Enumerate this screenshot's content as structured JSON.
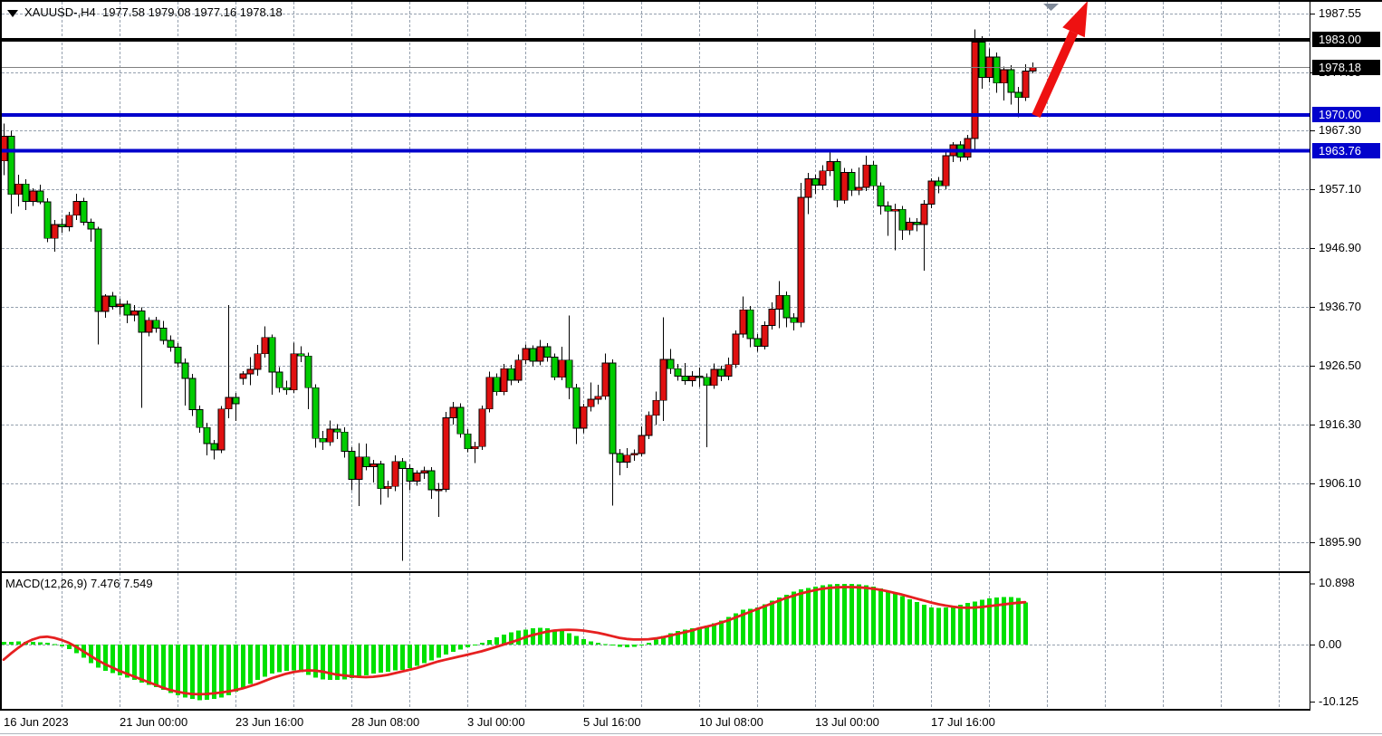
{
  "window": {
    "title_symbol": "XAUUSD-,H4",
    "title_ohlc": "1977.58 1979.08 1977.16 1978.18"
  },
  "colors": {
    "bull": "#e01010",
    "bear": "#00cc00",
    "wick": "#000000",
    "hist": "#00e000",
    "signal": "#e62020",
    "grid": "#95a0ae",
    "level_blue": "#0202cc",
    "level_black": "#000000",
    "current_line": "#808080",
    "arrow": "#ee1111",
    "shift_marker": "#808a99",
    "badge_black_bg": "#000000",
    "badge_blue_bg": "#0202cc"
  },
  "chart_data": {
    "type": "candlestick",
    "symbol": "XAUUSD-",
    "timeframe": "H4",
    "current_bar": {
      "open": 1977.58,
      "high": 1979.08,
      "low": 1977.16,
      "close": 1978.18
    },
    "price_axis": {
      "ticks": [
        {
          "label": "1987.55",
          "value": 1987.55
        },
        {
          "label": "1977.35",
          "value": 1977.35,
          "partially_hidden": true
        },
        {
          "label": "1967.30",
          "value": 1967.3
        },
        {
          "label": "1957.10",
          "value": 1957.1
        },
        {
          "label": "1946.90",
          "value": 1946.9
        },
        {
          "label": "1936.70",
          "value": 1936.7
        },
        {
          "label": "1926.50",
          "value": 1926.5
        },
        {
          "label": "1916.30",
          "value": 1916.3
        },
        {
          "label": "1906.10",
          "value": 1906.1
        },
        {
          "label": "1895.90",
          "value": 1895.9
        }
      ],
      "badges": [
        {
          "label": "1983.00",
          "value": 1983.0,
          "style": "black"
        },
        {
          "label": "1978.18",
          "value": 1978.18,
          "style": "black"
        },
        {
          "label": "1970.00",
          "value": 1970.0,
          "style": "blue"
        },
        {
          "label": "1963.76",
          "value": 1963.76,
          "style": "blue"
        }
      ]
    },
    "levels": {
      "black_resistance": 1983.0,
      "blue_support": [
        1970.0,
        1963.76
      ],
      "current_price": 1978.18
    },
    "x_labels": [
      "16 Jun 2023",
      "21 Jun 00:00",
      "23 Jun 16:00",
      "28 Jun 08:00",
      "3 Jul 00:00",
      "5 Jul 16:00",
      "10 Jul 08:00",
      "13 Jul 00:00",
      "17 Jul 16:00"
    ],
    "candles": [
      [
        1962.0,
        1968.5,
        1959.5,
        1966.3
      ],
      [
        1966.3,
        1967.2,
        1952.9,
        1956.2
      ],
      [
        1956.2,
        1959.6,
        1954.1,
        1958.0
      ],
      [
        1958.0,
        1958.8,
        1953.5,
        1955.0
      ],
      [
        1955.0,
        1957.3,
        1954.2,
        1956.8
      ],
      [
        1956.8,
        1957.9,
        1954.5,
        1954.9
      ],
      [
        1954.9,
        1955.5,
        1947.9,
        1948.6
      ],
      [
        1948.6,
        1951.8,
        1946.3,
        1951.0
      ],
      [
        1951.0,
        1952.0,
        1949.6,
        1950.6
      ],
      [
        1950.6,
        1953.2,
        1949.8,
        1952.6
      ],
      [
        1952.6,
        1956.3,
        1951.8,
        1955.0
      ],
      [
        1955.0,
        1955.6,
        1950.8,
        1951.4
      ],
      [
        1951.4,
        1952.0,
        1948.0,
        1950.2
      ],
      [
        1950.2,
        1950.6,
        1930.2,
        1935.9
      ],
      [
        1935.9,
        1938.9,
        1934.8,
        1938.6
      ],
      [
        1938.6,
        1939.3,
        1936.2,
        1936.8
      ],
      [
        1936.8,
        1938.1,
        1935.4,
        1937.2
      ],
      [
        1937.2,
        1937.8,
        1933.9,
        1935.3
      ],
      [
        1935.3,
        1937.0,
        1934.2,
        1936.0
      ],
      [
        1936.0,
        1936.6,
        1919.2,
        1932.3
      ],
      [
        1932.3,
        1934.9,
        1931.6,
        1934.4
      ],
      [
        1934.4,
        1935.0,
        1932.2,
        1933.0
      ],
      [
        1933.0,
        1934.3,
        1930.2,
        1930.9
      ],
      [
        1930.9,
        1931.8,
        1928.9,
        1929.7
      ],
      [
        1929.7,
        1930.4,
        1926.2,
        1927.0
      ],
      [
        1927.0,
        1927.8,
        1919.6,
        1924.3
      ],
      [
        1924.3,
        1925.1,
        1917.8,
        1918.9
      ],
      [
        1918.9,
        1919.6,
        1914.9,
        1915.8
      ],
      [
        1915.8,
        1916.6,
        1911.0,
        1913.0
      ],
      [
        1913.0,
        1913.6,
        1910.3,
        1911.9
      ],
      [
        1911.9,
        1919.5,
        1911.4,
        1919.0
      ],
      [
        1919.0,
        1937.0,
        1917.4,
        1921.0
      ],
      [
        1921.0,
        1921.8,
        1916.9,
        1919.9
      ],
      [
        1924.3,
        1925.6,
        1923.2,
        1925.1
      ],
      [
        1925.1,
        1928.0,
        1923.1,
        1925.9
      ],
      [
        1925.9,
        1930.1,
        1924.8,
        1928.6
      ],
      [
        1928.6,
        1933.3,
        1927.9,
        1931.4
      ],
      [
        1931.4,
        1931.9,
        1921.5,
        1925.4
      ],
      [
        1925.4,
        1926.3,
        1921.9,
        1922.7
      ],
      [
        1922.7,
        1923.9,
        1921.5,
        1922.3
      ],
      [
        1922.3,
        1930.5,
        1921.8,
        1928.6
      ],
      [
        1928.6,
        1929.9,
        1927.1,
        1928.2
      ],
      [
        1928.2,
        1928.8,
        1919.0,
        1922.7
      ],
      [
        1922.7,
        1923.3,
        1912.3,
        1913.9
      ],
      [
        1913.9,
        1915.2,
        1911.9,
        1913.3
      ],
      [
        1913.3,
        1917.0,
        1912.6,
        1915.5
      ],
      [
        1915.5,
        1916.4,
        1913.8,
        1915.0
      ],
      [
        1915.0,
        1915.8,
        1910.6,
        1911.7
      ],
      [
        1911.7,
        1912.4,
        1904.9,
        1906.8
      ],
      [
        1906.8,
        1913.1,
        1902.2,
        1910.7
      ],
      [
        1910.7,
        1913.0,
        1908.4,
        1909.0
      ],
      [
        1909.0,
        1910.2,
        1906.3,
        1909.5
      ],
      [
        1909.5,
        1910.0,
        1902.4,
        1905.2
      ],
      [
        1905.2,
        1906.6,
        1903.7,
        1905.6
      ],
      [
        1905.6,
        1911.0,
        1904.8,
        1909.9
      ],
      [
        1909.9,
        1910.5,
        1892.7,
        1908.7
      ],
      [
        1908.7,
        1909.4,
        1904.9,
        1906.5
      ],
      [
        1906.5,
        1908.4,
        1905.7,
        1907.9
      ],
      [
        1907.9,
        1909.0,
        1906.9,
        1908.3
      ],
      [
        1908.3,
        1908.9,
        1903.4,
        1905.0
      ],
      [
        1905.0,
        1906.2,
        1900.3,
        1905.1
      ],
      [
        1905.1,
        1918.5,
        1904.6,
        1917.5
      ],
      [
        1917.5,
        1920.2,
        1916.3,
        1919.3
      ],
      [
        1919.3,
        1920.0,
        1914.0,
        1914.7
      ],
      [
        1914.7,
        1915.5,
        1911.5,
        1912.1
      ],
      [
        1912.1,
        1913.3,
        1909.6,
        1912.5
      ],
      [
        1912.5,
        1919.6,
        1911.9,
        1919.0
      ],
      [
        1919.0,
        1925.5,
        1918.4,
        1924.5
      ],
      [
        1924.5,
        1925.2,
        1921.3,
        1922.0
      ],
      [
        1922.0,
        1926.8,
        1921.4,
        1926.0
      ],
      [
        1926.0,
        1926.7,
        1923.1,
        1924.0
      ],
      [
        1924.0,
        1928.5,
        1923.5,
        1927.5
      ],
      [
        1927.5,
        1930.2,
        1926.8,
        1929.5
      ],
      [
        1929.5,
        1930.0,
        1926.4,
        1927.3
      ],
      [
        1927.3,
        1931.0,
        1926.6,
        1929.8
      ],
      [
        1929.8,
        1930.4,
        1927.2,
        1928.0
      ],
      [
        1928.0,
        1928.6,
        1924.0,
        1924.5
      ],
      [
        1924.5,
        1929.8,
        1924.0,
        1927.5
      ],
      [
        1927.5,
        1935.2,
        1920.7,
        1922.7
      ],
      [
        1922.7,
        1923.4,
        1912.9,
        1915.7
      ],
      [
        1915.7,
        1919.9,
        1914.8,
        1919.4
      ],
      [
        1919.4,
        1923.6,
        1918.6,
        1920.7
      ],
      [
        1920.7,
        1923.2,
        1919.8,
        1921.2
      ],
      [
        1921.2,
        1928.6,
        1920.6,
        1927.0
      ],
      [
        1927.0,
        1927.6,
        1902.3,
        1911.3
      ],
      [
        1911.3,
        1912.1,
        1907.5,
        1909.8
      ],
      [
        1909.8,
        1912.2,
        1908.8,
        1911.0
      ],
      [
        1911.0,
        1912.0,
        1910.0,
        1911.3
      ],
      [
        1911.3,
        1916.0,
        1910.8,
        1914.4
      ],
      [
        1914.4,
        1918.6,
        1913.8,
        1917.9
      ],
      [
        1917.9,
        1922.0,
        1916.3,
        1920.5
      ],
      [
        1920.5,
        1934.9,
        1916.9,
        1927.6
      ],
      [
        1927.6,
        1929.4,
        1925.1,
        1926.0
      ],
      [
        1926.0,
        1926.8,
        1923.9,
        1924.7
      ],
      [
        1924.7,
        1927.0,
        1923.2,
        1923.9
      ],
      [
        1923.9,
        1925.6,
        1922.9,
        1924.7
      ],
      [
        1924.7,
        1926.2,
        1922.8,
        1924.5
      ],
      [
        1924.5,
        1925.2,
        1912.4,
        1923.1
      ],
      [
        1923.1,
        1926.9,
        1922.5,
        1925.9
      ],
      [
        1925.9,
        1926.5,
        1923.8,
        1924.7
      ],
      [
        1924.7,
        1927.9,
        1924.0,
        1926.7
      ],
      [
        1926.7,
        1932.6,
        1926.1,
        1932.0
      ],
      [
        1932.0,
        1938.5,
        1931.4,
        1936.2
      ],
      [
        1936.2,
        1936.9,
        1929.7,
        1931.2
      ],
      [
        1931.2,
        1932.0,
        1928.9,
        1929.9
      ],
      [
        1929.9,
        1934.2,
        1929.3,
        1933.5
      ],
      [
        1933.5,
        1937.5,
        1932.8,
        1936.3
      ],
      [
        1936.3,
        1941.2,
        1933.0,
        1938.7
      ],
      [
        1938.7,
        1939.4,
        1933.2,
        1934.8
      ],
      [
        1934.8,
        1935.6,
        1932.6,
        1934.0
      ],
      [
        1934.0,
        1958.2,
        1933.2,
        1955.7
      ],
      [
        1955.7,
        1959.9,
        1952.8,
        1958.9
      ],
      [
        1958.9,
        1959.6,
        1956.3,
        1957.8
      ],
      [
        1957.8,
        1961.3,
        1957.0,
        1960.3
      ],
      [
        1960.3,
        1963.5,
        1959.4,
        1961.9
      ],
      [
        1961.9,
        1962.4,
        1954.0,
        1955.2
      ],
      [
        1955.2,
        1960.8,
        1954.6,
        1960.0
      ],
      [
        1960.0,
        1960.6,
        1955.9,
        1956.9
      ],
      [
        1956.9,
        1960.9,
        1956.1,
        1957.4
      ],
      [
        1957.4,
        1962.9,
        1956.8,
        1961.3
      ],
      [
        1961.3,
        1962.0,
        1956.9,
        1957.7
      ],
      [
        1957.7,
        1958.3,
        1952.7,
        1954.2
      ],
      [
        1954.2,
        1955.0,
        1949.0,
        1953.3
      ],
      [
        1953.3,
        1954.6,
        1946.5,
        1953.6
      ],
      [
        1953.6,
        1954.2,
        1948.3,
        1950.0
      ],
      [
        1950.0,
        1952.2,
        1949.2,
        1951.4
      ],
      [
        1951.4,
        1952.1,
        1949.8,
        1951.0
      ],
      [
        1951.0,
        1955.2,
        1943.0,
        1954.5
      ],
      [
        1954.5,
        1959.0,
        1953.8,
        1958.5
      ],
      [
        1958.5,
        1959.2,
        1956.4,
        1957.7
      ],
      [
        1957.7,
        1963.6,
        1957.1,
        1962.9
      ],
      [
        1962.9,
        1965.3,
        1961.8,
        1964.8
      ],
      [
        1964.8,
        1965.4,
        1961.9,
        1962.7
      ],
      [
        1962.7,
        1966.5,
        1962.1,
        1965.9
      ],
      [
        1965.9,
        1984.8,
        1963.6,
        1982.6
      ],
      [
        1982.6,
        1983.6,
        1974.5,
        1976.5
      ],
      [
        1976.5,
        1981.5,
        1975.6,
        1980.0
      ],
      [
        1980.0,
        1980.8,
        1973.8,
        1975.5
      ],
      [
        1975.5,
        1978.4,
        1972.5,
        1977.8
      ],
      [
        1977.8,
        1978.6,
        1971.8,
        1973.9
      ],
      [
        1973.9,
        1974.8,
        1969.6,
        1973.0
      ],
      [
        1973.0,
        1978.8,
        1972.4,
        1977.6
      ],
      [
        1977.58,
        1979.08,
        1977.16,
        1978.18
      ]
    ],
    "macd": {
      "name": "MACD(12,26,9)",
      "values_label": "7.476 7.549",
      "main_value": 7.476,
      "signal_value": 7.549,
      "axis_ticks": [
        {
          "label": "10.898",
          "value": 10.898
        },
        {
          "label": "0.00",
          "value": 0
        },
        {
          "label": "-10.125",
          "value": -10.125
        }
      ],
      "histogram": [
        0.45,
        0.5,
        0.55,
        0.5,
        0.45,
        0.4,
        0.3,
        0.1,
        -0.3,
        -0.8,
        -1.5,
        -2.3,
        -3.3,
        -4.1,
        -4.7,
        -5.1,
        -5.5,
        -5.9,
        -6.3,
        -6.8,
        -7.2,
        -7.6,
        -8.1,
        -8.6,
        -9.0,
        -9.4,
        -9.7,
        -9.9,
        -9.85,
        -9.7,
        -9.4,
        -9.0,
        -8.4,
        -7.7,
        -7.0,
        -6.3,
        -5.7,
        -5.2,
        -4.9,
        -4.7,
        -4.6,
        -4.9,
        -5.4,
        -5.9,
        -6.2,
        -6.3,
        -6.3,
        -6.2,
        -6.0,
        -5.8,
        -5.5,
        -5.2,
        -5.0,
        -4.8,
        -4.6,
        -4.5,
        -4.2,
        -3.8,
        -3.3,
        -2.8,
        -2.3,
        -1.8,
        -1.3,
        -0.9,
        -0.5,
        -0.2,
        0.3,
        0.8,
        1.3,
        1.8,
        2.2,
        2.5,
        2.7,
        2.9,
        3.0,
        2.9,
        2.7,
        2.4,
        2.0,
        1.5,
        1.0,
        0.6,
        0.3,
        0.1,
        -0.2,
        -0.4,
        -0.5,
        -0.4,
        -0.1,
        0.3,
        0.9,
        1.5,
        2.0,
        2.4,
        2.7,
        2.9,
        3.1,
        3.4,
        3.8,
        4.3,
        4.9,
        5.6,
        6.2,
        6.4,
        6.6,
        7.2,
        7.8,
        8.4,
        8.9,
        9.4,
        9.8,
        10.1,
        10.35,
        10.55,
        10.7,
        10.78,
        10.82,
        10.8,
        10.7,
        10.55,
        10.3,
        10.0,
        9.6,
        9.1,
        8.6,
        8.1,
        7.6,
        7.1,
        6.6,
        6.5,
        6.6,
        6.8,
        7.1,
        7.4,
        7.7,
        8.0,
        8.2,
        8.35,
        8.45,
        8.5,
        8.3,
        7.476
      ],
      "signal": [
        -2.7,
        -1.6,
        -0.6,
        0.3,
        0.9,
        1.3,
        1.4,
        1.2,
        0.8,
        0.3,
        -0.4,
        -1.2,
        -2.0,
        -2.8,
        -3.5,
        -4.1,
        -4.7,
        -5.2,
        -5.7,
        -6.2,
        -6.7,
        -7.2,
        -7.7,
        -8.1,
        -8.4,
        -8.65,
        -8.8,
        -8.85,
        -8.8,
        -8.7,
        -8.55,
        -8.35,
        -8.1,
        -7.8,
        -7.4,
        -7.0,
        -6.5,
        -6.0,
        -5.6,
        -5.2,
        -4.9,
        -4.7,
        -4.6,
        -4.65,
        -4.8,
        -5.1,
        -5.35,
        -5.5,
        -5.65,
        -5.75,
        -5.8,
        -5.75,
        -5.6,
        -5.4,
        -5.1,
        -4.8,
        -4.5,
        -4.2,
        -3.8,
        -3.4,
        -3.0,
        -2.7,
        -2.4,
        -2.1,
        -1.8,
        -1.5,
        -1.2,
        -0.8,
        -0.4,
        0.0,
        0.4,
        0.8,
        1.3,
        1.7,
        2.0,
        2.3,
        2.5,
        2.6,
        2.65,
        2.6,
        2.5,
        2.3,
        2.1,
        1.8,
        1.5,
        1.2,
        1.0,
        0.9,
        0.9,
        0.95,
        1.1,
        1.3,
        1.6,
        1.9,
        2.2,
        2.5,
        2.9,
        3.2,
        3.5,
        3.9,
        4.3,
        4.8,
        5.3,
        5.8,
        6.3,
        6.8,
        7.3,
        7.8,
        8.3,
        8.7,
        9.1,
        9.4,
        9.7,
        9.95,
        10.1,
        10.2,
        10.25,
        10.25,
        10.2,
        10.1,
        9.95,
        9.75,
        9.5,
        9.2,
        8.9,
        8.55,
        8.2,
        7.85,
        7.5,
        7.2,
        6.95,
        6.75,
        6.6,
        6.55,
        6.6,
        6.7,
        6.85,
        7.0,
        7.15,
        7.3,
        7.45,
        7.549
      ]
    },
    "annotations": {
      "up_arrow": true,
      "chart_shift_marker": true
    }
  }
}
